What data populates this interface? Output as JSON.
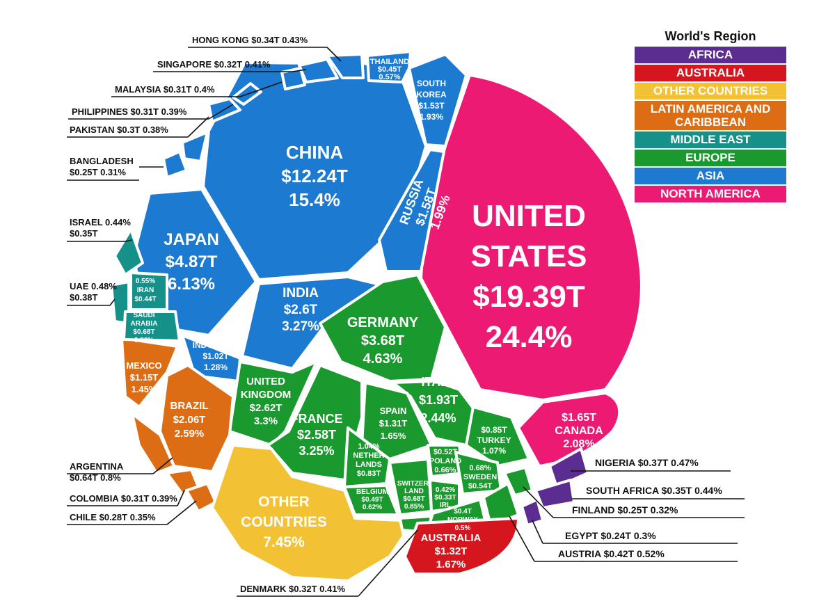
{
  "legend": {
    "title": "World's Region",
    "items": [
      {
        "label": "AFRICA",
        "color": "#5b2d90"
      },
      {
        "label": "AUSTRALIA",
        "color": "#d6161f"
      },
      {
        "label": "OTHER COUNTRIES",
        "color": "#f2c234"
      },
      {
        "label": "LATIN AMERICA AND CARIBBEAN",
        "color": "#dc6d14"
      },
      {
        "label": "MIDDLE EAST",
        "color": "#159189"
      },
      {
        "label": "EUROPE",
        "color": "#1a9a2e"
      },
      {
        "label": "ASIA",
        "color": "#1c7ad1"
      },
      {
        "label": "NORTH AMERICA",
        "color": "#ec1a72"
      }
    ]
  },
  "chart_data": {
    "type": "voronoi-treemap",
    "countries": [
      {
        "name": "UNITED STATES",
        "value": "$19.39T",
        "share": "24.4%",
        "gdp_trillion": 19.39,
        "percent": 24.4,
        "region": "NORTH AMERICA"
      },
      {
        "name": "CHINA",
        "value": "$12.24T",
        "share": "15.4%",
        "gdp_trillion": 12.24,
        "percent": 15.4,
        "region": "ASIA"
      },
      {
        "name": "JAPAN",
        "value": "$4.87T",
        "share": "6.13%",
        "gdp_trillion": 4.87,
        "percent": 6.13,
        "region": "ASIA"
      },
      {
        "name": "GERMANY",
        "value": "$3.68T",
        "share": "4.63%",
        "gdp_trillion": 3.68,
        "percent": 4.63,
        "region": "EUROPE"
      },
      {
        "name": "INDIA",
        "value": "$2.6T",
        "share": "3.27%",
        "gdp_trillion": 2.6,
        "percent": 3.27,
        "region": "ASIA"
      },
      {
        "name": "UNITED KINGDOM",
        "value": "$2.62T",
        "share": "3.3%",
        "gdp_trillion": 2.62,
        "percent": 3.3,
        "region": "EUROPE"
      },
      {
        "name": "FRANCE",
        "value": "$2.58T",
        "share": "3.25%",
        "gdp_trillion": 2.58,
        "percent": 3.25,
        "region": "EUROPE"
      },
      {
        "name": "BRAZIL",
        "value": "$2.06T",
        "share": "2.59%",
        "gdp_trillion": 2.06,
        "percent": 2.59,
        "region": "LATIN AMERICA AND CARIBBEAN"
      },
      {
        "name": "ITALY",
        "value": "$1.93T",
        "share": "2.44%",
        "gdp_trillion": 1.93,
        "percent": 2.44,
        "region": "EUROPE"
      },
      {
        "name": "CANADA",
        "value": "$1.65T",
        "share": "2.08%",
        "gdp_trillion": 1.65,
        "percent": 2.08,
        "region": "NORTH AMERICA"
      },
      {
        "name": "RUSSIA",
        "value": "$1.58T",
        "share": "1.99%",
        "gdp_trillion": 1.58,
        "percent": 1.99,
        "region": "ASIA"
      },
      {
        "name": "SOUTH KOREA",
        "value": "$1.53T",
        "share": "1.93%",
        "gdp_trillion": 1.53,
        "percent": 1.93,
        "region": "ASIA"
      },
      {
        "name": "AUSTRALIA",
        "value": "$1.32T",
        "share": "1.67%",
        "gdp_trillion": 1.32,
        "percent": 1.67,
        "region": "AUSTRALIA"
      },
      {
        "name": "SPAIN",
        "value": "$1.31T",
        "share": "1.65%",
        "gdp_trillion": 1.31,
        "percent": 1.65,
        "region": "EUROPE"
      },
      {
        "name": "MEXICO",
        "value": "$1.15T",
        "share": "1.45%",
        "gdp_trillion": 1.15,
        "percent": 1.45,
        "region": "LATIN AMERICA AND CARIBBEAN"
      },
      {
        "name": "INDONESIA",
        "value": "$1.02T",
        "share": "1.28%",
        "gdp_trillion": 1.02,
        "percent": 1.28,
        "region": "ASIA"
      },
      {
        "name": "NETHERLANDS",
        "value": "$0.83T",
        "share": "1.04%",
        "gdp_trillion": 0.83,
        "percent": 1.04,
        "region": "EUROPE"
      },
      {
        "name": "TURKEY",
        "value": "$0.85T",
        "share": "1.07%",
        "gdp_trillion": 0.85,
        "percent": 1.07,
        "region": "EUROPE"
      },
      {
        "name": "SAUDI ARABIA",
        "value": "$0.68T",
        "share": "0.86%",
        "gdp_trillion": 0.68,
        "percent": 0.86,
        "region": "MIDDLE EAST"
      },
      {
        "name": "SWITZERLAND",
        "value": "$0.68T",
        "share": "0.85%",
        "gdp_trillion": 0.68,
        "percent": 0.85,
        "region": "EUROPE"
      },
      {
        "name": "ARGENTINA",
        "value": "$0.64T",
        "share": "0.8%",
        "gdp_trillion": 0.64,
        "percent": 0.8,
        "region": "LATIN AMERICA AND CARIBBEAN"
      },
      {
        "name": "SWEDEN",
        "value": "$0.54T",
        "share": "0.68%",
        "gdp_trillion": 0.54,
        "percent": 0.68,
        "region": "EUROPE"
      },
      {
        "name": "POLAND",
        "value": "$0.52T",
        "share": "0.66%",
        "gdp_trillion": 0.52,
        "percent": 0.66,
        "region": "EUROPE"
      },
      {
        "name": "BELGIUM",
        "value": "$0.49T",
        "share": "0.62%",
        "gdp_trillion": 0.49,
        "percent": 0.62,
        "region": "EUROPE"
      },
      {
        "name": "THAILAND",
        "value": "$0.45T",
        "share": "0.57%",
        "gdp_trillion": 0.45,
        "percent": 0.57,
        "region": "ASIA"
      },
      {
        "name": "IRAN",
        "value": "$0.44T",
        "share": "0.55%",
        "gdp_trillion": 0.44,
        "percent": 0.55,
        "region": "MIDDLE EAST"
      },
      {
        "name": "AUSTRIA",
        "value": "$0.42T",
        "share": "0.52%",
        "gdp_trillion": 0.42,
        "percent": 0.52,
        "region": "EUROPE"
      },
      {
        "name": "NORWAY",
        "value": "$0.4T",
        "share": "0.5%",
        "gdp_trillion": 0.4,
        "percent": 0.5,
        "region": "EUROPE"
      },
      {
        "name": "UAE",
        "value": "$0.38T",
        "share": "0.48%",
        "gdp_trillion": 0.38,
        "percent": 0.48,
        "region": "MIDDLE EAST"
      },
      {
        "name": "NIGERIA",
        "value": "$0.37T",
        "share": "0.47%",
        "gdp_trillion": 0.37,
        "percent": 0.47,
        "region": "AFRICA"
      },
      {
        "name": "ISRAEL",
        "value": "$0.35T",
        "share": "0.44%",
        "gdp_trillion": 0.35,
        "percent": 0.44,
        "region": "MIDDLE EAST"
      },
      {
        "name": "SOUTH AFRICA",
        "value": "$0.35T",
        "share": "0.44%",
        "gdp_trillion": 0.35,
        "percent": 0.44,
        "region": "AFRICA"
      },
      {
        "name": "HONG KONG",
        "value": "$0.34T",
        "share": "0.43%",
        "gdp_trillion": 0.34,
        "percent": 0.43,
        "region": "ASIA"
      },
      {
        "name": "IRELAND",
        "value": "$0.33T",
        "share": "0.42%",
        "gdp_trillion": 0.33,
        "percent": 0.42,
        "region": "EUROPE"
      },
      {
        "name": "SINGAPORE",
        "value": "$0.32T",
        "share": "0.41%",
        "gdp_trillion": 0.32,
        "percent": 0.41,
        "region": "ASIA"
      },
      {
        "name": "DENMARK",
        "value": "$0.32T",
        "share": "0.41%",
        "gdp_trillion": 0.32,
        "percent": 0.41,
        "region": "EUROPE"
      },
      {
        "name": "MALAYSIA",
        "value": "$0.31T",
        "share": "0.4%",
        "gdp_trillion": 0.31,
        "percent": 0.4,
        "region": "ASIA"
      },
      {
        "name": "PHILIPPINES",
        "value": "$0.31T",
        "share": "0.39%",
        "gdp_trillion": 0.31,
        "percent": 0.39,
        "region": "ASIA"
      },
      {
        "name": "COLOMBIA",
        "value": "$0.31T",
        "share": "0.39%",
        "gdp_trillion": 0.31,
        "percent": 0.39,
        "region": "LATIN AMERICA AND CARIBBEAN"
      },
      {
        "name": "PAKISTAN",
        "value": "$0.3T",
        "share": "0.38%",
        "gdp_trillion": 0.3,
        "percent": 0.38,
        "region": "ASIA"
      },
      {
        "name": "CHILE",
        "value": "$0.28T",
        "share": "0.35%",
        "gdp_trillion": 0.28,
        "percent": 0.35,
        "region": "LATIN AMERICA AND CARIBBEAN"
      },
      {
        "name": "BANGLADESH",
        "value": "$0.25T",
        "share": "0.31%",
        "gdp_trillion": 0.25,
        "percent": 0.31,
        "region": "ASIA"
      },
      {
        "name": "FINLAND",
        "value": "$0.25T",
        "share": "0.32%",
        "gdp_trillion": 0.25,
        "percent": 0.32,
        "region": "EUROPE"
      },
      {
        "name": "EGYPT",
        "value": "$0.24T",
        "share": "0.3%",
        "gdp_trillion": 0.24,
        "percent": 0.3,
        "region": "AFRICA"
      },
      {
        "name": "OTHER COUNTRIES",
        "value": "",
        "share": "7.45%",
        "percent": 7.45,
        "region": "OTHER COUNTRIES"
      }
    ]
  },
  "cell_labels": {
    "us": [
      "UNITED",
      "STATES",
      "$19.39T",
      "24.4%"
    ],
    "china": [
      "CHINA",
      "$12.24T",
      "15.4%"
    ],
    "japan": [
      "JAPAN",
      "$4.87T",
      "6.13%"
    ],
    "india": [
      "INDIA",
      "$2.6T",
      "3.27%"
    ],
    "russia": [
      "RUSSIA",
      "$1.58T",
      "1.99%"
    ],
    "south_korea": [
      "SOUTH",
      "KOREA",
      "$1.53T",
      "1.93%"
    ],
    "thailand": [
      "THAILAND",
      "$0.45T",
      "0.57%"
    ],
    "indonesia": [
      "INDONESIA",
      "$1.02T",
      "1.28%"
    ],
    "germany": [
      "GERMANY",
      "$3.68T",
      "4.63%"
    ],
    "uk": [
      "UNITED",
      "KINGDOM",
      "$2.62T",
      "3.3%"
    ],
    "france": [
      "FRANCE",
      "$2.58T",
      "3.25%"
    ],
    "italy": [
      "ITALY",
      "$1.93T",
      "2.44%"
    ],
    "spain": [
      "SPAIN",
      "$1.31T",
      "1.65%"
    ],
    "netherlands": [
      "1.04%",
      "NETHER",
      "LANDS",
      "$0.83T"
    ],
    "turkey": [
      "$0.85T",
      "TURKEY",
      "1.07%"
    ],
    "poland": [
      "$0.52T",
      "POLAND",
      "0.66%"
    ],
    "sweden": [
      "0.68%",
      "SWEDEN",
      "$0.54T"
    ],
    "switzerland": [
      "SWITZER-",
      "LAND",
      "$0.68T",
      "0.85%"
    ],
    "belgium": [
      "BELGIUM",
      "$0.49T",
      "0.62%"
    ],
    "ireland": [
      "0.42%",
      "$0.33T",
      "IRL"
    ],
    "norway": [
      "$0.4T",
      "NORWAY",
      "0.5%"
    ],
    "canada": [
      "$1.65T",
      "CANADA",
      "2.08%"
    ],
    "mexico": [
      "MEXICO",
      "$1.15T",
      "1.45%"
    ],
    "brazil": [
      "BRAZIL",
      "$2.06T",
      "2.59%"
    ],
    "iran": [
      "0.55%",
      "IRAN",
      "$0.44T"
    ],
    "saudi": [
      "SAUDI",
      "ARABIA",
      "$0.68T",
      "0.86%"
    ],
    "other": [
      "OTHER",
      "COUNTRIES",
      "7.45%"
    ],
    "australia": [
      "AUSTRALIA",
      "$1.32T",
      "1.67%"
    ]
  },
  "callouts": {
    "hong_kong": [
      "HONG KONG  $0.34T  0.43%"
    ],
    "singapore": [
      "SINGAPORE  $0.32T  0.41%"
    ],
    "malaysia": [
      "MALAYSIA  $0.31T   0.4%"
    ],
    "philippines": [
      "PHILIPPINES  $0.31T  0.39%"
    ],
    "pakistan": [
      "PAKISTAN  $0.3T  0.38%"
    ],
    "bangladesh": [
      "BANGLADESH",
      "$0.25T  0.31%"
    ],
    "israel": [
      "ISRAEL 0.44%",
      "$0.35T"
    ],
    "uae": [
      "UAE  0.48%",
      "$0.38T"
    ],
    "argentina": [
      "ARGENTINA",
      "$0.64T  0.8%"
    ],
    "colombia": [
      "COLOMBIA $0.31T 0.39%"
    ],
    "chile": [
      "CHILE  $0.28T  0.35%"
    ],
    "denmark": [
      "DENMARK $0.32T 0.41%"
    ],
    "nigeria": [
      "NIGERIA $0.37T  0.47%"
    ],
    "south_africa": [
      "SOUTH AFRICA $0.35T  0.44%"
    ],
    "finland": [
      "FINLAND $0.25T   0.32%"
    ],
    "egypt": [
      "EGYPT  $0.24T   0.3%"
    ],
    "austria": [
      "AUSTRIA $0.42T  0.52%"
    ]
  }
}
